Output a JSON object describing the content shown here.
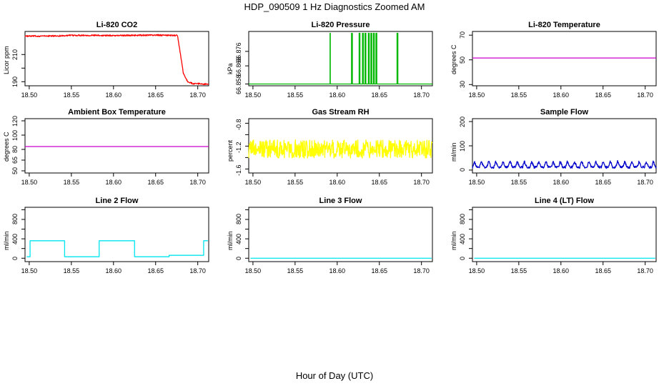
{
  "title": "HDP_090509  1 Hz Diagnostics Zoomed AM",
  "xlabel": "Hour of Day (UTC)",
  "chart_data": [
    {
      "type": "line",
      "title": "Li-820 CO2",
      "ylabel": "Licor ppm",
      "xlim": [
        18.495,
        18.713
      ],
      "ylim": [
        187,
        227
      ],
      "xticks": [
        "18.50",
        "18.55",
        "18.60",
        "18.65",
        "18.70"
      ],
      "yticks": [
        {
          "value": 190,
          "label": "190"
        },
        {
          "value": 200,
          "label": ""
        },
        {
          "value": 210,
          "label": "210"
        }
      ],
      "color": "#ff0000",
      "noise": 0.5,
      "series": [
        {
          "name": "CO2",
          "x": [
            18.495,
            18.53,
            18.56,
            18.6,
            18.65,
            18.676,
            18.679,
            18.683,
            18.688,
            18.695,
            18.703,
            18.713
          ],
          "y": [
            223.5,
            223.7,
            224.2,
            224.0,
            224.3,
            224.0,
            212,
            196,
            190,
            188.5,
            188.5,
            188.0
          ]
        }
      ]
    },
    {
      "type": "line",
      "title": "Li-820 Pressure",
      "ylabel": "kPa",
      "xlim": [
        18.495,
        18.713
      ],
      "ylim": [
        66.857,
        66.887
      ],
      "xticks": [
        "18.50",
        "18.55",
        "18.60",
        "18.65",
        "18.70"
      ],
      "yticks": [
        {
          "value": 66.858,
          "label": "66.858"
        },
        {
          "value": 66.868,
          "label": "66.868"
        },
        {
          "value": 66.876,
          "label": "66.876"
        }
      ],
      "color": "#00b800",
      "noise": 0,
      "series": [
        {
          "name": "Pressure",
          "x": [
            18.495,
            18.5915,
            18.5915,
            18.5918,
            18.5918,
            18.617,
            18.617,
            18.618,
            18.618,
            18.626,
            18.626,
            18.627,
            18.627,
            18.63,
            18.63,
            18.631,
            18.631,
            18.633,
            18.633,
            18.634,
            18.634,
            18.637,
            18.637,
            18.638,
            18.638,
            18.64,
            18.64,
            18.641,
            18.641,
            18.643,
            18.643,
            18.644,
            18.644,
            18.646,
            18.646,
            18.647,
            18.647,
            18.671,
            18.671,
            18.672,
            18.672,
            18.713
          ],
          "y": [
            66.858,
            66.858,
            66.886,
            66.886,
            66.858,
            66.858,
            66.886,
            66.886,
            66.858,
            66.858,
            66.886,
            66.886,
            66.858,
            66.858,
            66.886,
            66.886,
            66.858,
            66.858,
            66.886,
            66.886,
            66.858,
            66.858,
            66.886,
            66.886,
            66.858,
            66.858,
            66.886,
            66.886,
            66.858,
            66.858,
            66.886,
            66.886,
            66.858,
            66.858,
            66.886,
            66.886,
            66.858,
            66.858,
            66.886,
            66.886,
            66.858,
            66.858
          ]
        }
      ]
    },
    {
      "type": "line",
      "title": "Li-820 Temperature",
      "ylabel": "degrees C",
      "xlim": [
        18.495,
        18.713
      ],
      "ylim": [
        29,
        73
      ],
      "xticks": [
        "18.50",
        "18.55",
        "18.60",
        "18.65",
        "18.70"
      ],
      "yticks": [
        {
          "value": 30,
          "label": "30"
        },
        {
          "value": 50,
          "label": "50"
        },
        {
          "value": 70,
          "label": "70"
        }
      ],
      "color": "#cc00cc",
      "noise": 0,
      "series": [
        {
          "name": "Temperature",
          "x": [
            18.495,
            18.713
          ],
          "y": [
            51.5,
            51.5
          ]
        }
      ]
    },
    {
      "type": "line",
      "title": "Ambient Box Temperature",
      "ylabel": "degrees C",
      "xlim": [
        18.495,
        18.713
      ],
      "ylim": [
        47,
        123
      ],
      "xticks": [
        "18.50",
        "18.55",
        "18.60",
        "18.65",
        "18.70"
      ],
      "yticks": [
        {
          "value": 50,
          "label": "50"
        },
        {
          "value": 65,
          "label": "65"
        },
        {
          "value": 80,
          "label": "80"
        },
        {
          "value": 100,
          "label": "100"
        },
        {
          "value": 120,
          "label": "120"
        }
      ],
      "color": "#cc00cc",
      "noise": 0,
      "series": [
        {
          "name": "Ambient Temperature",
          "x": [
            18.495,
            18.713
          ],
          "y": [
            84,
            84
          ]
        }
      ]
    },
    {
      "type": "line",
      "title": "Gas Stream RH",
      "ylabel": "percent",
      "xlim": [
        18.495,
        18.713
      ],
      "ylim": [
        -1.67,
        -0.72
      ],
      "xticks": [
        "18.50",
        "18.55",
        "18.60",
        "18.65",
        "18.70"
      ],
      "yticks": [
        {
          "value": -1.6,
          "label": "-1.6"
        },
        {
          "value": -1.4,
          "label": ""
        },
        {
          "value": -1.2,
          "label": "-1.2"
        },
        {
          "value": -1.0,
          "label": ""
        },
        {
          "value": -0.8,
          "label": "-0.8"
        }
      ],
      "color": "#ffff00",
      "noise": 0.16,
      "series": [
        {
          "name": "RH",
          "x": [
            18.495,
            18.713
          ],
          "y": [
            -1.25,
            -1.25
          ]
        }
      ]
    },
    {
      "type": "line",
      "title": "Sample Flow",
      "ylabel": "ml/min",
      "xlim": [
        18.495,
        18.713
      ],
      "ylim": [
        -12,
        212
      ],
      "xticks": [
        "18.50",
        "18.55",
        "18.60",
        "18.65",
        "18.70"
      ],
      "yticks": [
        {
          "value": 0,
          "label": "0"
        },
        {
          "value": 100,
          "label": "100"
        },
        {
          "value": 200,
          "label": "200"
        }
      ],
      "color": "#0000cc",
      "noise": 5,
      "period": 0.0085,
      "amplitude": 24,
      "series": [
        {
          "name": "Sample Flow",
          "x": [
            18.495,
            18.713
          ],
          "y": [
            12,
            12
          ]
        }
      ]
    },
    {
      "type": "line",
      "title": "Line 2 Flow",
      "ylabel": "ml/min",
      "xlim": [
        18.495,
        18.713
      ],
      "ylim": [
        -70,
        1050
      ],
      "xticks": [
        "18.50",
        "18.55",
        "18.60",
        "18.65",
        "18.70"
      ],
      "yticks": [
        {
          "value": 0,
          "label": "0"
        },
        {
          "value": 200,
          "label": ""
        },
        {
          "value": 400,
          "label": "400"
        },
        {
          "value": 600,
          "label": ""
        },
        {
          "value": 800,
          "label": "800"
        },
        {
          "value": 1000,
          "label": ""
        }
      ],
      "color": "#00e5ee",
      "noise": 0,
      "series": [
        {
          "name": "Line 2 Flow",
          "x": [
            18.497,
            18.501,
            18.501,
            18.542,
            18.542,
            18.583,
            18.583,
            18.625,
            18.625,
            18.666,
            18.666,
            18.707,
            18.707,
            18.712
          ],
          "y": [
            30,
            30,
            360,
            360,
            30,
            30,
            360,
            360,
            30,
            30,
            60,
            60,
            360,
            360
          ]
        }
      ]
    },
    {
      "type": "line",
      "title": "Line 3 Flow",
      "ylabel": "ml/min",
      "xlim": [
        18.495,
        18.713
      ],
      "ylim": [
        -70,
        1050
      ],
      "xticks": [
        "18.50",
        "18.55",
        "18.60",
        "18.65",
        "18.70"
      ],
      "yticks": [
        {
          "value": 0,
          "label": "0"
        },
        {
          "value": 200,
          "label": ""
        },
        {
          "value": 400,
          "label": "400"
        },
        {
          "value": 600,
          "label": ""
        },
        {
          "value": 800,
          "label": "800"
        },
        {
          "value": 1000,
          "label": ""
        }
      ],
      "color": "#00e5ee",
      "noise": 0,
      "series": [
        {
          "name": "Line 3 Flow",
          "x": [
            18.497,
            18.712
          ],
          "y": [
            0,
            0
          ]
        }
      ]
    },
    {
      "type": "line",
      "title": "Line 4 (LT) Flow",
      "ylabel": "ml/min",
      "xlim": [
        18.495,
        18.713
      ],
      "ylim": [
        -70,
        1050
      ],
      "xticks": [
        "18.50",
        "18.55",
        "18.60",
        "18.65",
        "18.70"
      ],
      "yticks": [
        {
          "value": 0,
          "label": "0"
        },
        {
          "value": 200,
          "label": ""
        },
        {
          "value": 400,
          "label": "400"
        },
        {
          "value": 600,
          "label": ""
        },
        {
          "value": 800,
          "label": "800"
        },
        {
          "value": 1000,
          "label": ""
        }
      ],
      "color": "#00e5ee",
      "noise": 0,
      "series": [
        {
          "name": "Line 4 Flow",
          "x": [
            18.497,
            18.712
          ],
          "y": [
            0,
            0
          ]
        }
      ]
    }
  ]
}
